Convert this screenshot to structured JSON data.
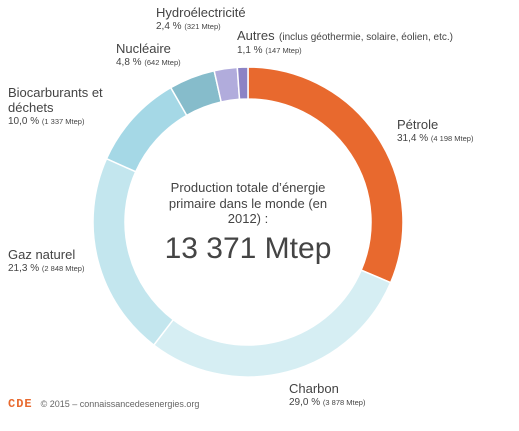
{
  "chart_data": {
    "type": "pie",
    "title": "Production totale d’énergie primaire dans le monde (en 2012) :",
    "total": "13 371 Mtep",
    "slices": [
      {
        "name": "Pétrole",
        "percent": "31,4 %",
        "value": "(4 198 Mtep)",
        "share": 31.4,
        "color": "#e8692e"
      },
      {
        "name": "Charbon",
        "percent": "29,0 %",
        "value": "(3 878 Mtep)",
        "share": 29.0,
        "color": "#d6eef3"
      },
      {
        "name": "Gaz naturel",
        "percent": "21,3 %",
        "value": "(2 848 Mtep)",
        "share": 21.3,
        "color": "#c3e6ee"
      },
      {
        "name": "Biocarburants et déchets",
        "percent": "10,0 %",
        "value": "(1 337 Mtep)",
        "share": 10.0,
        "color": "#a5d8e6"
      },
      {
        "name": "Nucléaire",
        "percent": "4,8 %",
        "value": "(642 Mtep)",
        "share": 4.8,
        "color": "#86bccb"
      },
      {
        "name": "Hydroélectricité",
        "percent": "2,4 %",
        "value": "(321 Mtep)",
        "share": 2.4,
        "color": "#b1acdc"
      },
      {
        "name": "Autres",
        "note": "(inclus géothermie, solaire, éolien, etc.)",
        "percent": "1,1 %",
        "value": "(147 Mtep)",
        "share": 1.1,
        "color": "#8c83c5"
      }
    ]
  },
  "footer": {
    "logo": "CDE",
    "copyright": "© 2015 – connaissancedesenergies.org"
  }
}
